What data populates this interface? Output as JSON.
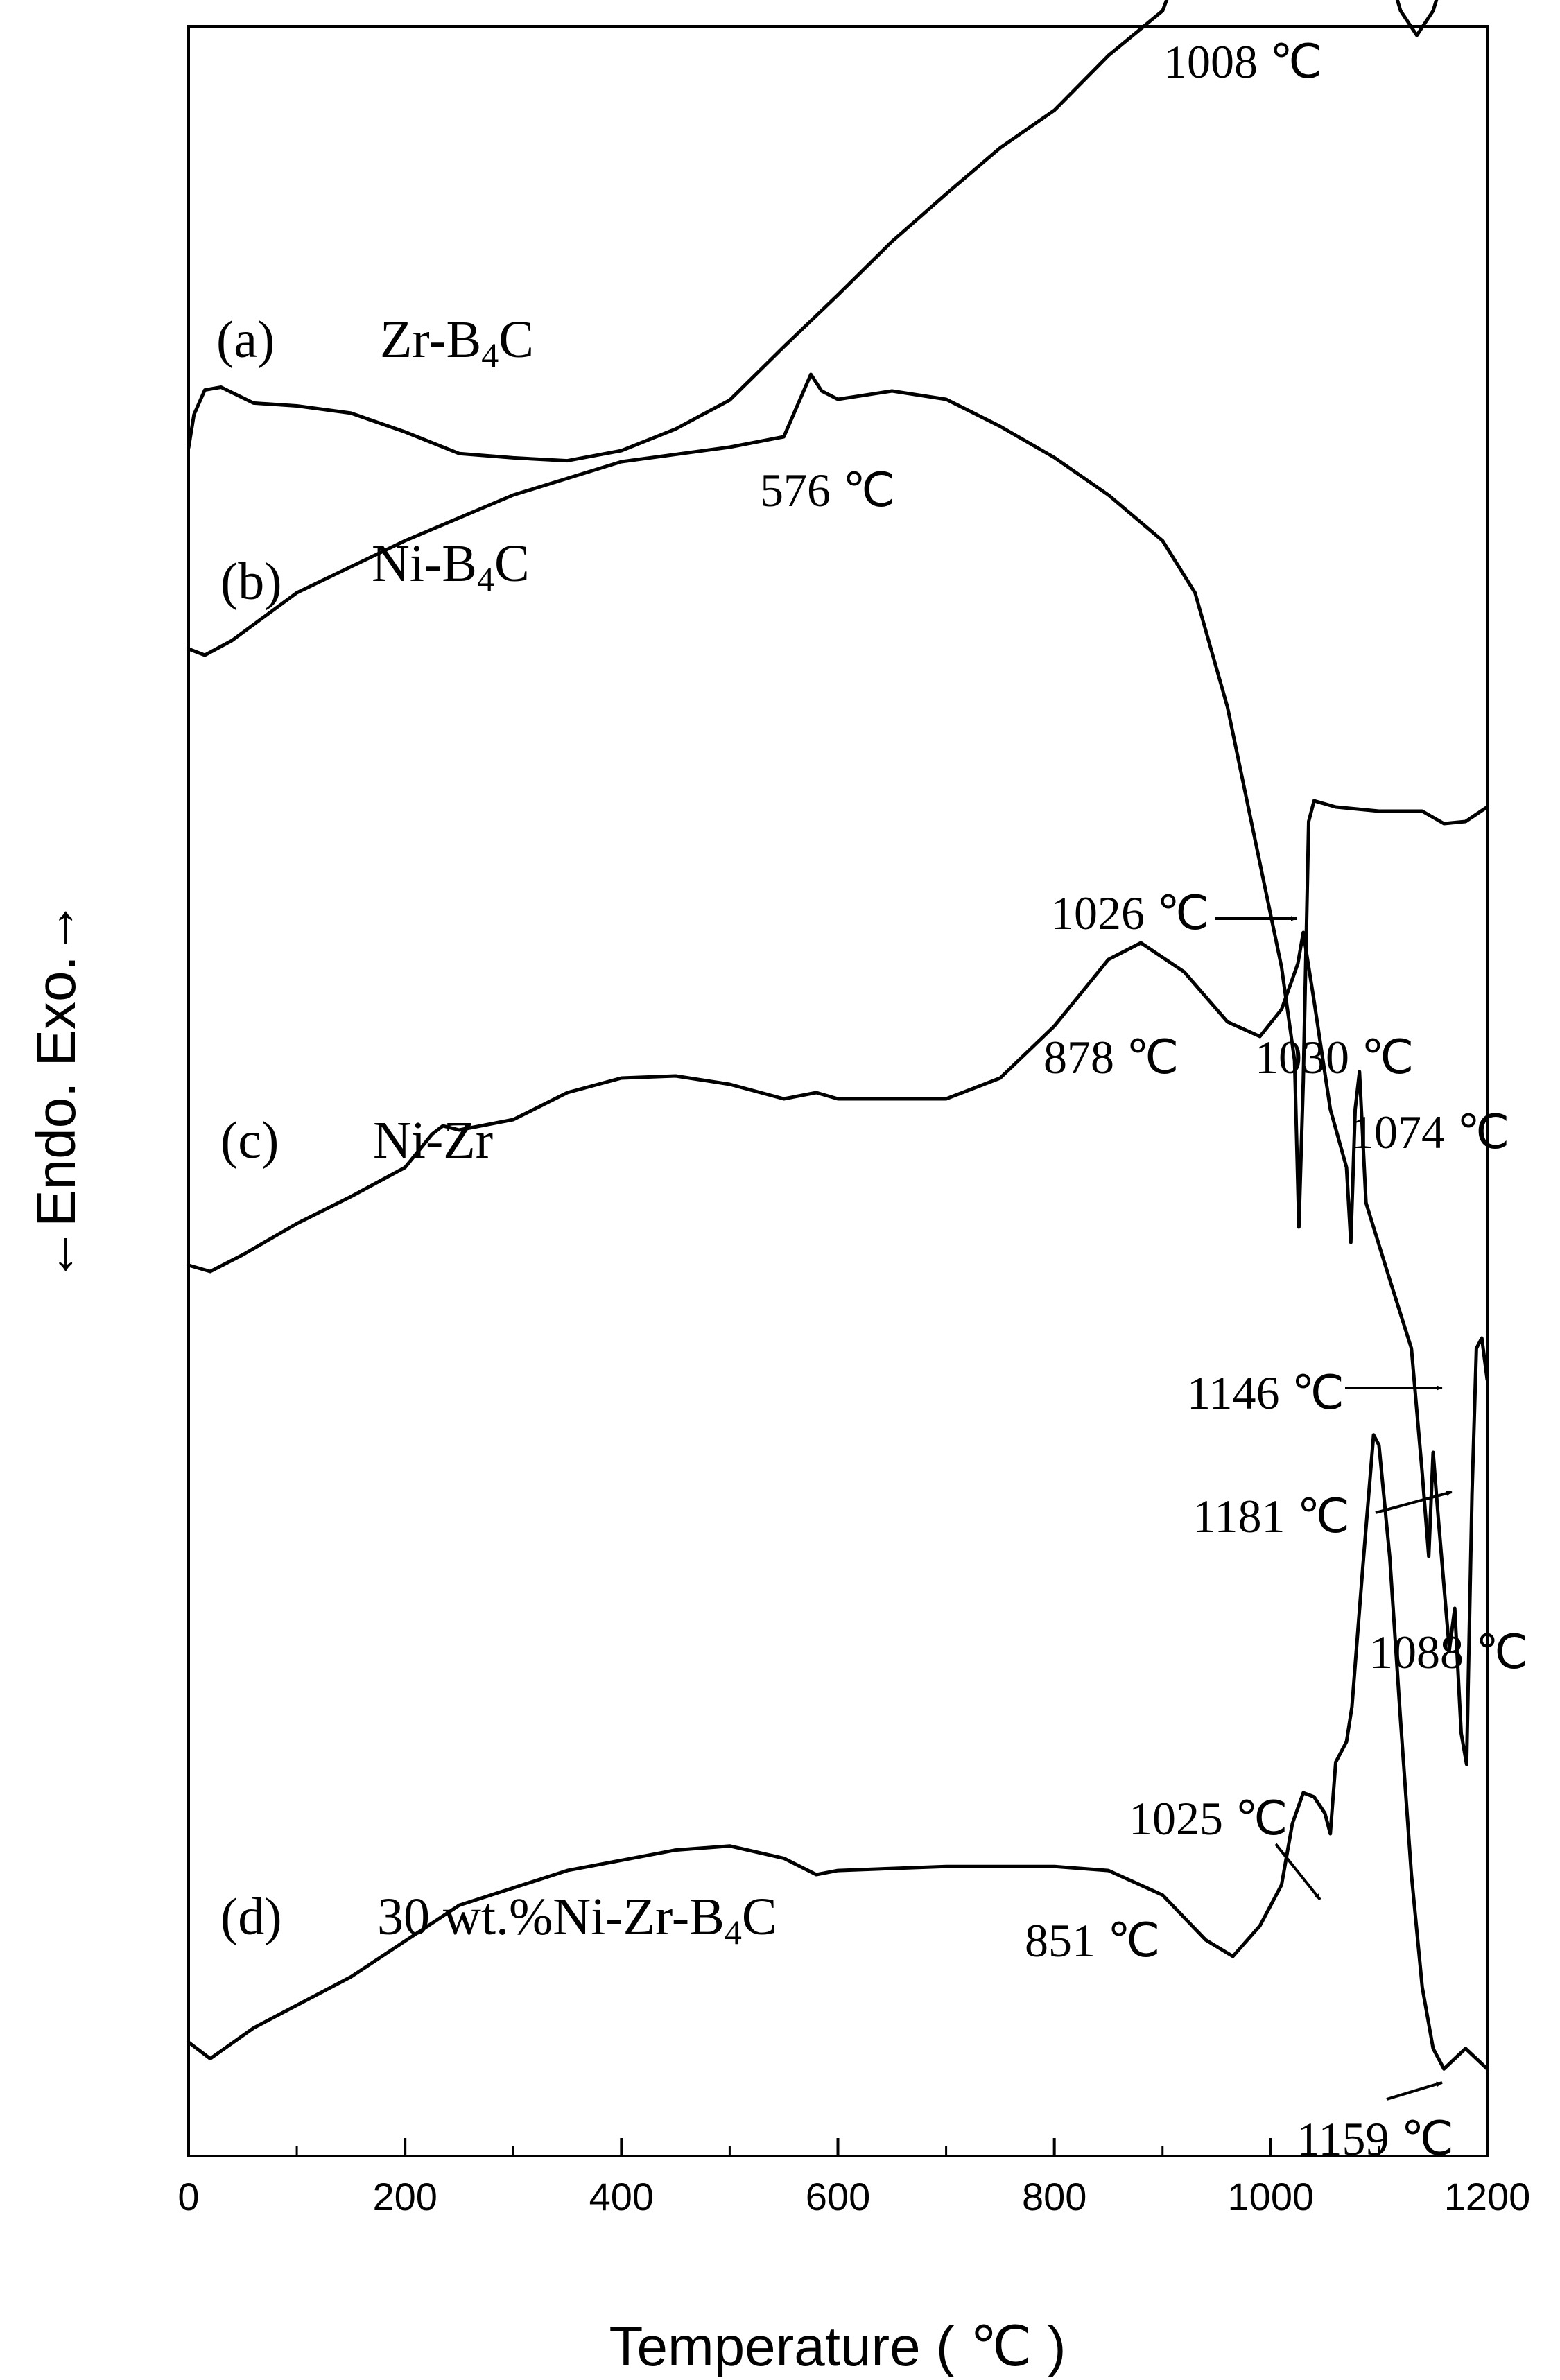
{
  "chart_data": {
    "type": "line",
    "xlabel": "Temperature ( ℃ )",
    "ylabel": "←Endo.    Exo.→",
    "xlim": [
      0,
      1200
    ],
    "x_ticks": [
      "0",
      "200",
      "400",
      "600",
      "800",
      "1000",
      "1200"
    ],
    "y_ticks": [],
    "grid": false,
    "legend": "none",
    "series": [
      {
        "label": "(a)",
        "compound": "Zr-B",
        "compound_sub": "4",
        "compound_tail": "C",
        "color": "#000000",
        "points": [
          [
            0,
            0.02
          ],
          [
            5,
            0.25
          ],
          [
            15,
            0.42
          ],
          [
            30,
            0.44
          ],
          [
            60,
            0.33
          ],
          [
            100,
            0.31
          ],
          [
            150,
            0.26
          ],
          [
            200,
            0.13
          ],
          [
            250,
            -0.02
          ],
          [
            300,
            -0.05
          ],
          [
            350,
            -0.07
          ],
          [
            400,
            0.0
          ],
          [
            450,
            0.15
          ],
          [
            500,
            0.35
          ],
          [
            550,
            0.72
          ],
          [
            600,
            1.08
          ],
          [
            650,
            1.45
          ],
          [
            700,
            1.78
          ],
          [
            750,
            2.1
          ],
          [
            800,
            2.36
          ],
          [
            850,
            2.74
          ],
          [
            900,
            3.05
          ],
          [
            920,
            3.45
          ],
          [
            940,
            3.88
          ],
          [
            960,
            4.05
          ],
          [
            975,
            4.22
          ],
          [
            990,
            4.1
          ],
          [
            1000,
            4.12
          ],
          [
            1020,
            4.2
          ],
          [
            1040,
            4.22
          ],
          [
            1060,
            4.18
          ],
          [
            1080,
            3.95
          ],
          [
            1100,
            3.55
          ],
          [
            1120,
            3.05
          ],
          [
            1135,
            2.88
          ],
          [
            1150,
            3.05
          ],
          [
            1170,
            3.55
          ],
          [
            1185,
            4.15
          ],
          [
            1200,
            4.75
          ]
        ]
      },
      {
        "label": "(b)",
        "compound": "Ni-B",
        "compound_sub": "4",
        "compound_tail": "C",
        "color": "#000000",
        "points": [
          [
            0,
            -0.02
          ],
          [
            15,
            -0.05
          ],
          [
            40,
            0.02
          ],
          [
            100,
            0.25
          ],
          [
            200,
            0.5
          ],
          [
            300,
            0.72
          ],
          [
            400,
            0.88
          ],
          [
            500,
            0.95
          ],
          [
            550,
            1.0
          ],
          [
            565,
            1.18
          ],
          [
            575,
            1.3
          ],
          [
            585,
            1.22
          ],
          [
            600,
            1.18
          ],
          [
            650,
            1.22
          ],
          [
            700,
            1.18
          ],
          [
            750,
            1.05
          ],
          [
            800,
            0.9
          ],
          [
            850,
            0.72
          ],
          [
            900,
            0.5
          ],
          [
            930,
            0.25
          ],
          [
            960,
            -0.3
          ],
          [
            990,
            -1.05
          ],
          [
            1010,
            -1.55
          ],
          [
            1022,
            -2.0
          ],
          [
            1026,
            -2.8
          ],
          [
            1030,
            -2.1
          ],
          [
            1035,
            -0.85
          ],
          [
            1040,
            -0.75
          ],
          [
            1060,
            -0.78
          ],
          [
            1100,
            -0.8
          ],
          [
            1140,
            -0.8
          ],
          [
            1160,
            -0.86
          ],
          [
            1180,
            -0.85
          ],
          [
            1200,
            -0.78
          ]
        ]
      },
      {
        "label": "(c)",
        "compound": "Ni-Zr",
        "compound_sub": "",
        "compound_tail": "",
        "color": "#000000",
        "points": [
          [
            0,
            -0.05
          ],
          [
            20,
            -0.08
          ],
          [
            50,
            0.0
          ],
          [
            100,
            0.15
          ],
          [
            150,
            0.28
          ],
          [
            200,
            0.42
          ],
          [
            225,
            0.58
          ],
          [
            235,
            0.62
          ],
          [
            250,
            0.6
          ],
          [
            300,
            0.65
          ],
          [
            350,
            0.78
          ],
          [
            400,
            0.85
          ],
          [
            450,
            0.86
          ],
          [
            500,
            0.82
          ],
          [
            550,
            0.75
          ],
          [
            580,
            0.78
          ],
          [
            600,
            0.75
          ],
          [
            700,
            0.75
          ],
          [
            750,
            0.85
          ],
          [
            800,
            1.1
          ],
          [
            850,
            1.42
          ],
          [
            880,
            1.5
          ],
          [
            920,
            1.36
          ],
          [
            960,
            1.12
          ],
          [
            990,
            1.05
          ],
          [
            1010,
            1.18
          ],
          [
            1025,
            1.4
          ],
          [
            1030,
            1.55
          ],
          [
            1040,
            1.22
          ],
          [
            1055,
            0.7
          ],
          [
            1070,
            0.42
          ],
          [
            1074,
            0.06
          ],
          [
            1078,
            0.7
          ],
          [
            1082,
            0.88
          ],
          [
            1088,
            0.25
          ],
          [
            1110,
            -0.12
          ],
          [
            1130,
            -0.45
          ],
          [
            1140,
            -1.05
          ],
          [
            1146,
            -1.45
          ],
          [
            1150,
            -0.95
          ],
          [
            1155,
            -1.28
          ],
          [
            1165,
            -1.9
          ],
          [
            1170,
            -1.7
          ],
          [
            1176,
            -2.3
          ],
          [
            1181,
            -2.45
          ],
          [
            1186,
            -1.15
          ],
          [
            1190,
            -0.45
          ],
          [
            1195,
            -0.4
          ],
          [
            1200,
            -0.6
          ]
        ]
      },
      {
        "label": "(d)",
        "compound": "30 wt.%Ni-Zr-B",
        "compound_sub": "4",
        "compound_tail": "C",
        "color": "#000000",
        "points": [
          [
            0,
            -0.02
          ],
          [
            20,
            -0.1
          ],
          [
            60,
            0.05
          ],
          [
            150,
            0.3
          ],
          [
            250,
            0.65
          ],
          [
            350,
            0.82
          ],
          [
            450,
            0.92
          ],
          [
            500,
            0.94
          ],
          [
            550,
            0.88
          ],
          [
            580,
            0.8
          ],
          [
            600,
            0.82
          ],
          [
            700,
            0.84
          ],
          [
            800,
            0.84
          ],
          [
            850,
            0.82
          ],
          [
            900,
            0.7
          ],
          [
            940,
            0.48
          ],
          [
            965,
            0.4
          ],
          [
            990,
            0.55
          ],
          [
            1010,
            0.75
          ],
          [
            1020,
            1.05
          ],
          [
            1030,
            1.2
          ],
          [
            1040,
            1.18
          ],
          [
            1050,
            1.1
          ],
          [
            1055,
            1.0
          ],
          [
            1060,
            1.35
          ],
          [
            1070,
            1.45
          ],
          [
            1075,
            1.62
          ],
          [
            1085,
            2.3
          ],
          [
            1095,
            2.95
          ],
          [
            1100,
            2.9
          ],
          [
            1110,
            2.35
          ],
          [
            1120,
            1.55
          ],
          [
            1130,
            0.8
          ],
          [
            1140,
            0.25
          ],
          [
            1150,
            -0.05
          ],
          [
            1160,
            -0.15
          ],
          [
            1170,
            -0.1
          ],
          [
            1180,
            -0.05
          ],
          [
            1190,
            -0.1
          ],
          [
            1200,
            -0.15
          ]
        ]
      }
    ],
    "annotations": [
      {
        "text": "1008 ℃",
        "x": 1008,
        "series": 0,
        "arrow": false
      },
      {
        "text": "576 ℃",
        "x": 576,
        "series": 1,
        "arrow": false
      },
      {
        "text": "1026 ℃",
        "x": 1026,
        "series": 1,
        "arrow": true
      },
      {
        "text": "878 ℃",
        "x": 878,
        "series": 2,
        "arrow": false
      },
      {
        "text": "1030 ℃",
        "x": 1030,
        "series": 2,
        "arrow": false
      },
      {
        "text": "1074 ℃",
        "x": 1074,
        "series": 2,
        "arrow": false
      },
      {
        "text": "1146 ℃",
        "x": 1146,
        "series": 2,
        "arrow": true
      },
      {
        "text": "1181 ℃",
        "x": 1181,
        "series": 2,
        "arrow": true
      },
      {
        "text": "1088 ℃",
        "x": 1088,
        "series": 3,
        "arrow": false
      },
      {
        "text": "1025 ℃",
        "x": 1025,
        "series": 3,
        "arrow": true
      },
      {
        "text": "851 ℃",
        "x": 851,
        "series": 3,
        "arrow": false
      },
      {
        "text": "1159 ℃",
        "x": 1159,
        "series": 3,
        "arrow": true
      }
    ]
  }
}
